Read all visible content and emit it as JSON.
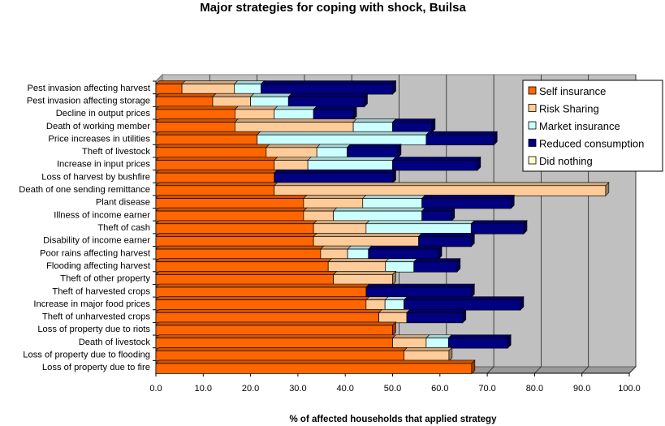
{
  "chart_data": {
    "type": "bar",
    "orientation": "horizontal",
    "stacked": true,
    "title": "Major strategies for coping with shock, Builsa",
    "xlabel": "% of affected households that applied strategy",
    "ylabel": "",
    "xlim": [
      0,
      100
    ],
    "xticks": [
      "0.0",
      "10.0",
      "20.0",
      "30.0",
      "40.0",
      "50.0",
      "60.0",
      "70.0",
      "80.0",
      "90.0",
      "100.0"
    ],
    "grid": true,
    "legend_position": "top-right",
    "categories": [
      "Pest invasion affecting harvest",
      "Pest invasion affecting storage",
      "Decline in output prices",
      "Death of working member",
      "Price increases in utilities",
      "Theft of livestock",
      "Increase in input prices",
      "Loss of harvest by bushfire",
      "Death of one sending remittance",
      "Plant disease",
      "Illness of income earner",
      "Theft of cash",
      "Disability of income earner",
      "Poor rains affecting harvest",
      "Flooding affecting harvest",
      "Theft of other property",
      "Theft of harvested crops",
      "Increase in major food prices",
      "Theft of unharvested crops",
      "Loss of property due to riots",
      "Death of livestock",
      "Loss of property due to flooding",
      "Loss of property due to fire"
    ],
    "series": [
      {
        "name": "Self insurance",
        "color": "#FF6600",
        "values": [
          5.5,
          12.0,
          16.7,
          16.7,
          21.4,
          23.3,
          25.0,
          25.0,
          25.0,
          31.2,
          31.2,
          33.3,
          33.3,
          34.8,
          36.4,
          37.5,
          44.4,
          44.4,
          47.1,
          50.0,
          50.0,
          52.4,
          66.7
        ]
      },
      {
        "name": "Risk Sharing",
        "color": "#FFCC99",
        "values": [
          11.1,
          8.0,
          8.3,
          25.0,
          0.0,
          10.7,
          7.1,
          0.0,
          70.0,
          12.5,
          6.3,
          11.1,
          22.2,
          5.7,
          12.1,
          12.5,
          0.0,
          4.0,
          5.9,
          0.0,
          7.1,
          9.5,
          0.0
        ]
      },
      {
        "name": "Market insurance",
        "color": "#CCFFFF",
        "values": [
          5.6,
          8.0,
          8.3,
          8.3,
          35.7,
          6.4,
          17.9,
          0.0,
          0.0,
          12.5,
          18.7,
          22.2,
          0.0,
          4.4,
          6.0,
          0.0,
          0.0,
          4.0,
          0.0,
          0.0,
          4.7,
          0.0,
          0.0
        ]
      },
      {
        "name": "Reduced consumption",
        "color": "#000080",
        "values": [
          27.8,
          16.0,
          8.4,
          8.3,
          14.3,
          10.7,
          17.9,
          25.0,
          0.0,
          18.8,
          6.2,
          11.1,
          11.1,
          14.8,
          9.1,
          0.0,
          22.2,
          24.6,
          11.8,
          0.0,
          12.5,
          0.0,
          0.0
        ]
      },
      {
        "name": "Did nothing",
        "color": "#FFFFCC",
        "values": [
          0,
          0,
          0,
          0,
          0,
          0,
          0,
          0,
          0,
          0,
          0,
          0,
          0,
          0,
          0,
          0,
          0,
          0,
          0,
          0,
          0,
          0,
          0
        ]
      }
    ]
  }
}
